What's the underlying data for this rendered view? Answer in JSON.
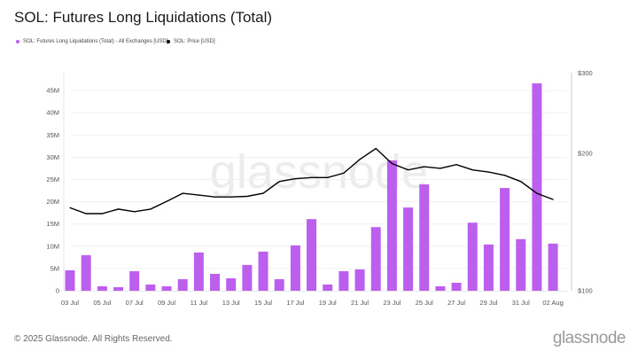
{
  "chart_data": {
    "type": "bar",
    "title": "SOL: Futures Long Liquidations (Total)",
    "legend": [
      "SOL: Futures Long Liquidations (Total) - All Exchanges [USD]",
      "SOL: Price [USD]"
    ],
    "legend_position": "top-left",
    "grid": true,
    "categories": [
      "03 Jul",
      "04 Jul",
      "05 Jul",
      "06 Jul",
      "07 Jul",
      "08 Jul",
      "09 Jul",
      "10 Jul",
      "11 Jul",
      "12 Jul",
      "13 Jul",
      "14 Jul",
      "15 Jul",
      "16 Jul",
      "17 Jul",
      "18 Jul",
      "19 Jul",
      "20 Jul",
      "21 Jul",
      "22 Jul",
      "23 Jul",
      "24 Jul",
      "25 Jul",
      "26 Jul",
      "27 Jul",
      "28 Jul",
      "29 Jul",
      "30 Jul",
      "31 Jul",
      "01 Aug",
      "02 Aug"
    ],
    "x_tick_labels": [
      "03 Jul",
      "05 Jul",
      "07 Jul",
      "09 Jul",
      "11 Jul",
      "13 Jul",
      "15 Jul",
      "17 Jul",
      "19 Jul",
      "21 Jul",
      "23 Jul",
      "25 Jul",
      "27 Jul",
      "29 Jul",
      "31 Jul",
      "02 Aug"
    ],
    "series": [
      {
        "name": "SOL: Futures Long Liquidations (Total) - All Exchanges [USD]",
        "type": "bar",
        "axis": "left",
        "color": "#bd5fee",
        "values": [
          4600000.0,
          8000000.0,
          1000000.0,
          800000.0,
          4400000.0,
          1400000.0,
          1000000.0,
          2600000.0,
          8600000.0,
          3800000.0,
          2800000.0,
          5800000.0,
          8800000.0,
          2600000.0,
          10200000.0,
          16100000.0,
          1400000.0,
          4400000.0,
          4800000.0,
          14300000.0,
          29300000.0,
          18700000.0,
          23900000.0,
          1000000.0,
          1800000.0,
          15300000.0,
          10400000.0,
          23100000.0,
          11600000.0,
          46600000.0,
          10600000.0
        ]
      },
      {
        "name": "SOL: Price [USD]",
        "type": "line",
        "axis": "right",
        "color": "#000000",
        "values": [
          152,
          147.6,
          147.6,
          151,
          149,
          151,
          157,
          163.5,
          162,
          160.5,
          160.5,
          161,
          163.5,
          173.5,
          176,
          177,
          177,
          181,
          194,
          205,
          190,
          184,
          187,
          185.5,
          189,
          184,
          182,
          179,
          173.5,
          163.5,
          158.5
        ]
      }
    ],
    "y_left": {
      "ylim": [
        0,
        50000000
      ],
      "ticks": [
        0,
        5000000,
        10000000,
        15000000,
        20000000,
        25000000,
        30000000,
        35000000,
        40000000,
        45000000
      ],
      "tick_labels": [
        "0",
        "5M",
        "10M",
        "15M",
        "20M",
        "25M",
        "30M",
        "35M",
        "40M",
        "45M"
      ]
    },
    "y_right": {
      "scale": "log",
      "ylim": [
        100,
        300
      ],
      "tick_labels": [
        "$100",
        "$200",
        "$300"
      ],
      "ticks": [
        100,
        200,
        300
      ]
    }
  },
  "footer": {
    "copyright": "© 2025 Glassnode. All Rights Reserved.",
    "logo": "glassnode",
    "watermark": "glassnode"
  }
}
